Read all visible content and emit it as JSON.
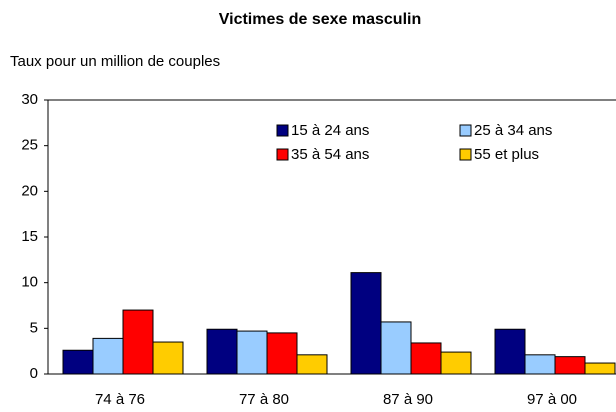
{
  "chart_data": {
    "type": "bar",
    "title": "Victimes de sexe masculin",
    "subtitle": "Taux pour un million de couples",
    "categories": [
      "74 à 76",
      "77 à 80",
      "87 à 90",
      "97 à 00"
    ],
    "series": [
      {
        "name": "15 à 24 ans",
        "color": "#000080",
        "values": [
          2.6,
          4.9,
          11.1,
          4.9
        ]
      },
      {
        "name": "25 à 34 ans",
        "color": "#99ccff",
        "values": [
          3.9,
          4.7,
          5.7,
          2.1
        ]
      },
      {
        "name": "35 à 54 ans",
        "color": "#ff0000",
        "values": [
          7.0,
          4.5,
          3.4,
          1.9
        ]
      },
      {
        "name": "55 et plus",
        "color": "#ffcc00",
        "values": [
          3.5,
          2.1,
          2.4,
          1.2
        ]
      }
    ],
    "ylim": [
      0,
      30
    ],
    "yticks": [
      0,
      5,
      10,
      15,
      20,
      25,
      30
    ],
    "grid": false
  }
}
